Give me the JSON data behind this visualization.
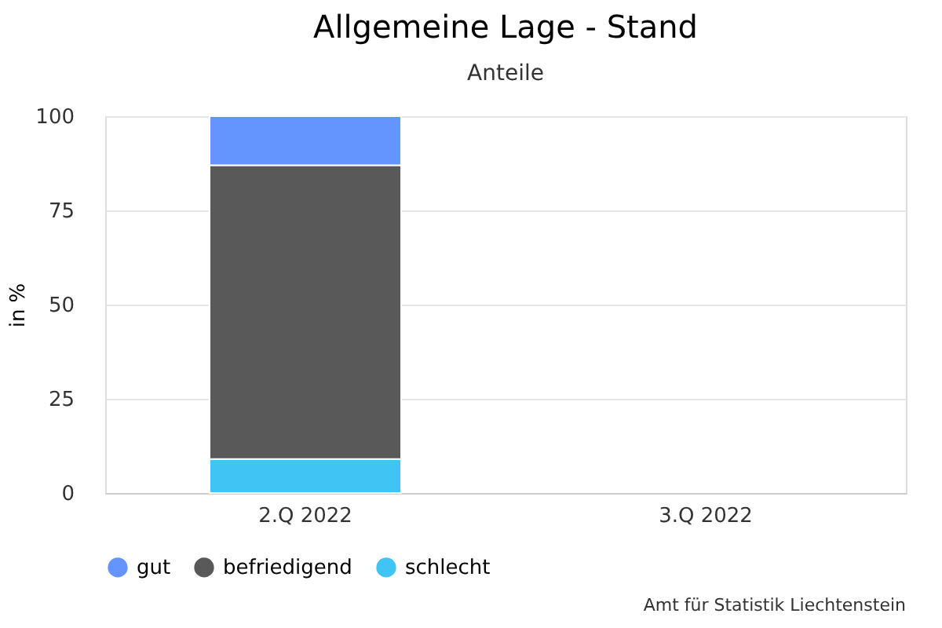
{
  "chart_data": {
    "type": "bar",
    "title": "Allgemeine Lage - Stand",
    "subtitle": "Anteile",
    "ylabel": "in %",
    "categories": [
      "2.Q 2022",
      "3.Q 2022"
    ],
    "stacked": true,
    "series": [
      {
        "name": "schlecht",
        "color": "#40c4f4",
        "values": [
          9,
          null
        ]
      },
      {
        "name": "befriedigend",
        "color": "#595959",
        "values": [
          78,
          null
        ]
      },
      {
        "name": "gut",
        "color": "#6495ff",
        "values": [
          13,
          null
        ]
      }
    ],
    "ylim": [
      0,
      100
    ],
    "yticks": [
      0,
      25,
      50,
      75,
      100
    ],
    "grid": "y",
    "legend": "bottom",
    "annotations": [
      "Amt für Statistik Liechtenstein"
    ]
  }
}
